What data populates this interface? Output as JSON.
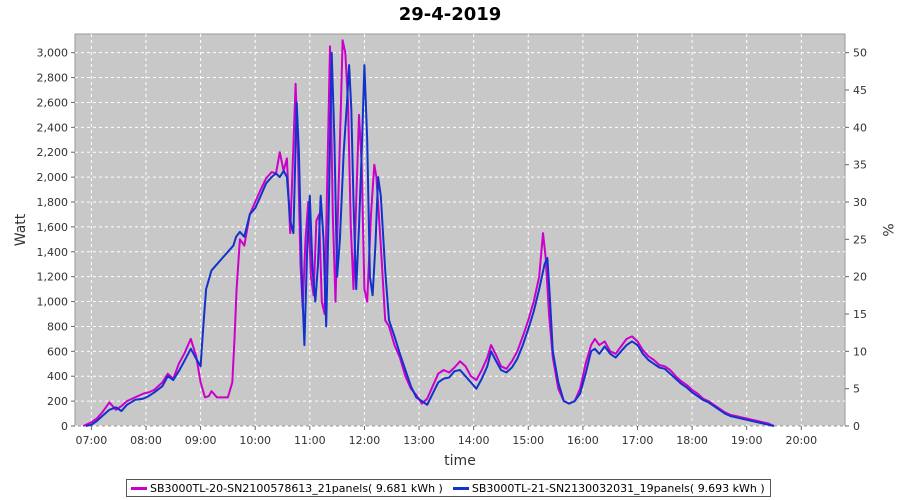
{
  "chart_data": {
    "type": "line",
    "title": "29-4-2019",
    "xlabel": "time",
    "ylabel": "Watt",
    "y2label": "%",
    "xlim": [
      6.7,
      20.8
    ],
    "ylim": [
      0,
      3150
    ],
    "y2lim": [
      0,
      52.5
    ],
    "grid": true,
    "legend_position": "bottom",
    "x_ticks": [
      "07:00",
      "08:00",
      "09:00",
      "10:00",
      "11:00",
      "12:00",
      "13:00",
      "14:00",
      "15:00",
      "16:00",
      "17:00",
      "18:00",
      "19:00",
      "20:00"
    ],
    "y_ticks": [
      "0",
      "200",
      "400",
      "600",
      "800",
      "1,000",
      "1,200",
      "1,400",
      "1,600",
      "1,800",
      "2,000",
      "2,200",
      "2,400",
      "2,600",
      "2,800",
      "3,000"
    ],
    "y2_ticks": [
      "0",
      "5",
      "10",
      "15",
      "20",
      "25",
      "30",
      "35",
      "40",
      "45",
      "50"
    ],
    "series": [
      {
        "name": "SB3000TL-20-SN2100578613_21panels( 9.681 kWh )",
        "color": "#cc00cc",
        "points": [
          [
            6.85,
            0
          ],
          [
            7.0,
            30
          ],
          [
            7.1,
            60
          ],
          [
            7.2,
            110
          ],
          [
            7.33,
            190
          ],
          [
            7.45,
            130
          ],
          [
            7.55,
            160
          ],
          [
            7.65,
            200
          ],
          [
            7.8,
            230
          ],
          [
            7.95,
            260
          ],
          [
            8.05,
            270
          ],
          [
            8.15,
            290
          ],
          [
            8.3,
            350
          ],
          [
            8.4,
            420
          ],
          [
            8.5,
            380
          ],
          [
            8.6,
            500
          ],
          [
            8.7,
            580
          ],
          [
            8.82,
            700
          ],
          [
            8.92,
            560
          ],
          [
            9.0,
            350
          ],
          [
            9.08,
            230
          ],
          [
            9.15,
            240
          ],
          [
            9.2,
            280
          ],
          [
            9.3,
            230
          ],
          [
            9.4,
            230
          ],
          [
            9.5,
            230
          ],
          [
            9.58,
            350
          ],
          [
            9.62,
            700
          ],
          [
            9.66,
            1100
          ],
          [
            9.72,
            1500
          ],
          [
            9.8,
            1450
          ],
          [
            9.9,
            1700
          ],
          [
            10.0,
            1800
          ],
          [
            10.1,
            1900
          ],
          [
            10.2,
            1990
          ],
          [
            10.3,
            2040
          ],
          [
            10.38,
            2030
          ],
          [
            10.45,
            2200
          ],
          [
            10.52,
            2050
          ],
          [
            10.58,
            2150
          ],
          [
            10.64,
            1550
          ],
          [
            10.7,
            2250
          ],
          [
            10.74,
            2750
          ],
          [
            10.78,
            2250
          ],
          [
            10.83,
            1300
          ],
          [
            10.87,
            950
          ],
          [
            10.92,
            1500
          ],
          [
            10.97,
            1800
          ],
          [
            11.02,
            1200
          ],
          [
            11.07,
            1050
          ],
          [
            11.12,
            1650
          ],
          [
            11.17,
            1700
          ],
          [
            11.22,
            1000
          ],
          [
            11.27,
            900
          ],
          [
            11.32,
            2000
          ],
          [
            11.37,
            3050
          ],
          [
            11.42,
            1700
          ],
          [
            11.47,
            1000
          ],
          [
            11.52,
            1800
          ],
          [
            11.57,
            2600
          ],
          [
            11.6,
            3100
          ],
          [
            11.65,
            3000
          ],
          [
            11.7,
            2600
          ],
          [
            11.75,
            1600
          ],
          [
            11.8,
            1100
          ],
          [
            11.85,
            1800
          ],
          [
            11.9,
            2500
          ],
          [
            11.95,
            2100
          ],
          [
            12.0,
            1100
          ],
          [
            12.05,
            1000
          ],
          [
            12.12,
            1700
          ],
          [
            12.18,
            2100
          ],
          [
            12.22,
            2000
          ],
          [
            12.3,
            1450
          ],
          [
            12.38,
            850
          ],
          [
            12.45,
            800
          ],
          [
            12.55,
            650
          ],
          [
            12.65,
            550
          ],
          [
            12.75,
            400
          ],
          [
            12.85,
            300
          ],
          [
            12.95,
            250
          ],
          [
            13.05,
            180
          ],
          [
            13.15,
            220
          ],
          [
            13.25,
            320
          ],
          [
            13.35,
            420
          ],
          [
            13.45,
            450
          ],
          [
            13.55,
            430
          ],
          [
            13.65,
            470
          ],
          [
            13.75,
            520
          ],
          [
            13.85,
            480
          ],
          [
            13.95,
            400
          ],
          [
            14.05,
            370
          ],
          [
            14.15,
            450
          ],
          [
            14.25,
            550
          ],
          [
            14.32,
            650
          ],
          [
            14.4,
            580
          ],
          [
            14.5,
            480
          ],
          [
            14.6,
            460
          ],
          [
            14.7,
            520
          ],
          [
            14.8,
            600
          ],
          [
            14.9,
            720
          ],
          [
            15.0,
            850
          ],
          [
            15.1,
            1000
          ],
          [
            15.2,
            1200
          ],
          [
            15.27,
            1550
          ],
          [
            15.32,
            1350
          ],
          [
            15.38,
            900
          ],
          [
            15.45,
            550
          ],
          [
            15.55,
            300
          ],
          [
            15.65,
            200
          ],
          [
            15.75,
            180
          ],
          [
            15.85,
            200
          ],
          [
            15.95,
            300
          ],
          [
            16.05,
            500
          ],
          [
            16.15,
            650
          ],
          [
            16.22,
            700
          ],
          [
            16.3,
            650
          ],
          [
            16.4,
            680
          ],
          [
            16.5,
            600
          ],
          [
            16.6,
            580
          ],
          [
            16.7,
            640
          ],
          [
            16.8,
            700
          ],
          [
            16.9,
            720
          ],
          [
            17.0,
            680
          ],
          [
            17.1,
            610
          ],
          [
            17.2,
            560
          ],
          [
            17.3,
            530
          ],
          [
            17.4,
            490
          ],
          [
            17.5,
            480
          ],
          [
            17.6,
            450
          ],
          [
            17.7,
            400
          ],
          [
            17.8,
            360
          ],
          [
            17.9,
            330
          ],
          [
            18.0,
            290
          ],
          [
            18.1,
            260
          ],
          [
            18.2,
            220
          ],
          [
            18.3,
            200
          ],
          [
            18.4,
            170
          ],
          [
            18.5,
            140
          ],
          [
            18.6,
            110
          ],
          [
            18.7,
            90
          ],
          [
            18.8,
            80
          ],
          [
            18.9,
            70
          ],
          [
            19.0,
            60
          ],
          [
            19.1,
            50
          ],
          [
            19.2,
            40
          ],
          [
            19.3,
            30
          ],
          [
            19.4,
            20
          ],
          [
            19.5,
            0
          ]
        ]
      },
      {
        "name": "SB3000TL-21-SN2130032031_19panels( 9.693 kWh )",
        "color": "#1133cc",
        "points": [
          [
            6.9,
            0
          ],
          [
            7.0,
            10
          ],
          [
            7.1,
            40
          ],
          [
            7.2,
            80
          ],
          [
            7.33,
            130
          ],
          [
            7.45,
            150
          ],
          [
            7.55,
            120
          ],
          [
            7.65,
            170
          ],
          [
            7.8,
            210
          ],
          [
            7.95,
            220
          ],
          [
            8.05,
            240
          ],
          [
            8.15,
            270
          ],
          [
            8.3,
            320
          ],
          [
            8.4,
            400
          ],
          [
            8.5,
            370
          ],
          [
            8.6,
            440
          ],
          [
            8.7,
            520
          ],
          [
            8.82,
            620
          ],
          [
            8.92,
            540
          ],
          [
            9.0,
            480
          ],
          [
            9.05,
            800
          ],
          [
            9.1,
            1100
          ],
          [
            9.2,
            1250
          ],
          [
            9.3,
            1300
          ],
          [
            9.4,
            1350
          ],
          [
            9.5,
            1400
          ],
          [
            9.6,
            1450
          ],
          [
            9.65,
            1520
          ],
          [
            9.72,
            1560
          ],
          [
            9.8,
            1520
          ],
          [
            9.9,
            1700
          ],
          [
            10.0,
            1750
          ],
          [
            10.1,
            1850
          ],
          [
            10.2,
            1950
          ],
          [
            10.3,
            2000
          ],
          [
            10.38,
            2030
          ],
          [
            10.45,
            2000
          ],
          [
            10.52,
            2050
          ],
          [
            10.58,
            2000
          ],
          [
            10.64,
            1650
          ],
          [
            10.7,
            1550
          ],
          [
            10.76,
            2600
          ],
          [
            10.8,
            2200
          ],
          [
            10.86,
            1100
          ],
          [
            10.9,
            650
          ],
          [
            10.95,
            1400
          ],
          [
            11.0,
            1850
          ],
          [
            11.05,
            1250
          ],
          [
            11.1,
            1000
          ],
          [
            11.15,
            1300
          ],
          [
            11.2,
            1850
          ],
          [
            11.25,
            1500
          ],
          [
            11.3,
            800
          ],
          [
            11.35,
            1800
          ],
          [
            11.4,
            3000
          ],
          [
            11.45,
            2300
          ],
          [
            11.5,
            1200
          ],
          [
            11.55,
            1500
          ],
          [
            11.62,
            2200
          ],
          [
            11.68,
            2600
          ],
          [
            11.72,
            2900
          ],
          [
            11.76,
            2550
          ],
          [
            11.8,
            1800
          ],
          [
            11.85,
            1100
          ],
          [
            11.9,
            1600
          ],
          [
            11.95,
            2200
          ],
          [
            12.0,
            2900
          ],
          [
            12.05,
            2300
          ],
          [
            12.1,
            1200
          ],
          [
            12.15,
            1050
          ],
          [
            12.2,
            1450
          ],
          [
            12.25,
            2000
          ],
          [
            12.3,
            1850
          ],
          [
            12.38,
            1250
          ],
          [
            12.45,
            850
          ],
          [
            12.55,
            720
          ],
          [
            12.65,
            580
          ],
          [
            12.75,
            450
          ],
          [
            12.85,
            320
          ],
          [
            12.95,
            230
          ],
          [
            13.05,
            200
          ],
          [
            13.15,
            170
          ],
          [
            13.25,
            260
          ],
          [
            13.35,
            350
          ],
          [
            13.45,
            380
          ],
          [
            13.55,
            390
          ],
          [
            13.65,
            440
          ],
          [
            13.75,
            450
          ],
          [
            13.85,
            400
          ],
          [
            13.95,
            350
          ],
          [
            14.05,
            300
          ],
          [
            14.15,
            380
          ],
          [
            14.25,
            480
          ],
          [
            14.32,
            600
          ],
          [
            14.4,
            530
          ],
          [
            14.5,
            450
          ],
          [
            14.6,
            430
          ],
          [
            14.7,
            470
          ],
          [
            14.8,
            540
          ],
          [
            14.9,
            650
          ],
          [
            15.0,
            780
          ],
          [
            15.1,
            920
          ],
          [
            15.2,
            1100
          ],
          [
            15.3,
            1300
          ],
          [
            15.35,
            1350
          ],
          [
            15.4,
            1000
          ],
          [
            15.45,
            600
          ],
          [
            15.55,
            350
          ],
          [
            15.65,
            200
          ],
          [
            15.75,
            180
          ],
          [
            15.85,
            200
          ],
          [
            15.95,
            260
          ],
          [
            16.05,
            420
          ],
          [
            16.15,
            600
          ],
          [
            16.22,
            620
          ],
          [
            16.3,
            580
          ],
          [
            16.4,
            640
          ],
          [
            16.5,
            580
          ],
          [
            16.6,
            550
          ],
          [
            16.7,
            600
          ],
          [
            16.8,
            650
          ],
          [
            16.9,
            680
          ],
          [
            17.0,
            650
          ],
          [
            17.1,
            580
          ],
          [
            17.2,
            530
          ],
          [
            17.3,
            500
          ],
          [
            17.4,
            470
          ],
          [
            17.5,
            460
          ],
          [
            17.6,
            420
          ],
          [
            17.7,
            380
          ],
          [
            17.8,
            340
          ],
          [
            17.9,
            310
          ],
          [
            18.0,
            270
          ],
          [
            18.1,
            240
          ],
          [
            18.2,
            210
          ],
          [
            18.3,
            190
          ],
          [
            18.4,
            160
          ],
          [
            18.5,
            130
          ],
          [
            18.6,
            100
          ],
          [
            18.7,
            80
          ],
          [
            18.8,
            70
          ],
          [
            18.9,
            60
          ],
          [
            19.0,
            50
          ],
          [
            19.1,
            40
          ],
          [
            19.2,
            30
          ],
          [
            19.3,
            20
          ],
          [
            19.4,
            10
          ],
          [
            19.5,
            0
          ]
        ]
      }
    ]
  }
}
